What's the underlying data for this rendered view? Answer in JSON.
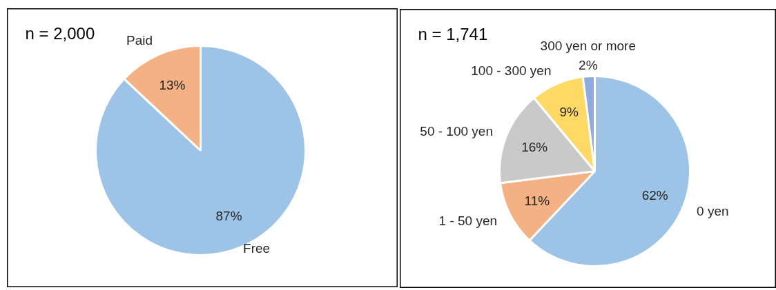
{
  "chart_data": [
    {
      "type": "pie",
      "title": "n = 2,000",
      "categories": [
        "Free",
        "Paid"
      ],
      "values": [
        87,
        13
      ],
      "colors": [
        "#9dc3e6",
        "#f4b183"
      ],
      "value_labels": [
        "87%",
        "13%"
      ]
    },
    {
      "type": "pie",
      "title": "n = 1,741",
      "categories": [
        "0 yen",
        "1 - 50 yen",
        "50 - 100 yen",
        "100 - 300 yen",
        "300 yen or more"
      ],
      "values": [
        62,
        11,
        16,
        9,
        2
      ],
      "colors": [
        "#9dc3e6",
        "#f4b183",
        "#c9c9c9",
        "#ffd966",
        "#8faadc"
      ],
      "value_labels": [
        "62%",
        "11%",
        "16%",
        "9%",
        "2%"
      ]
    }
  ]
}
